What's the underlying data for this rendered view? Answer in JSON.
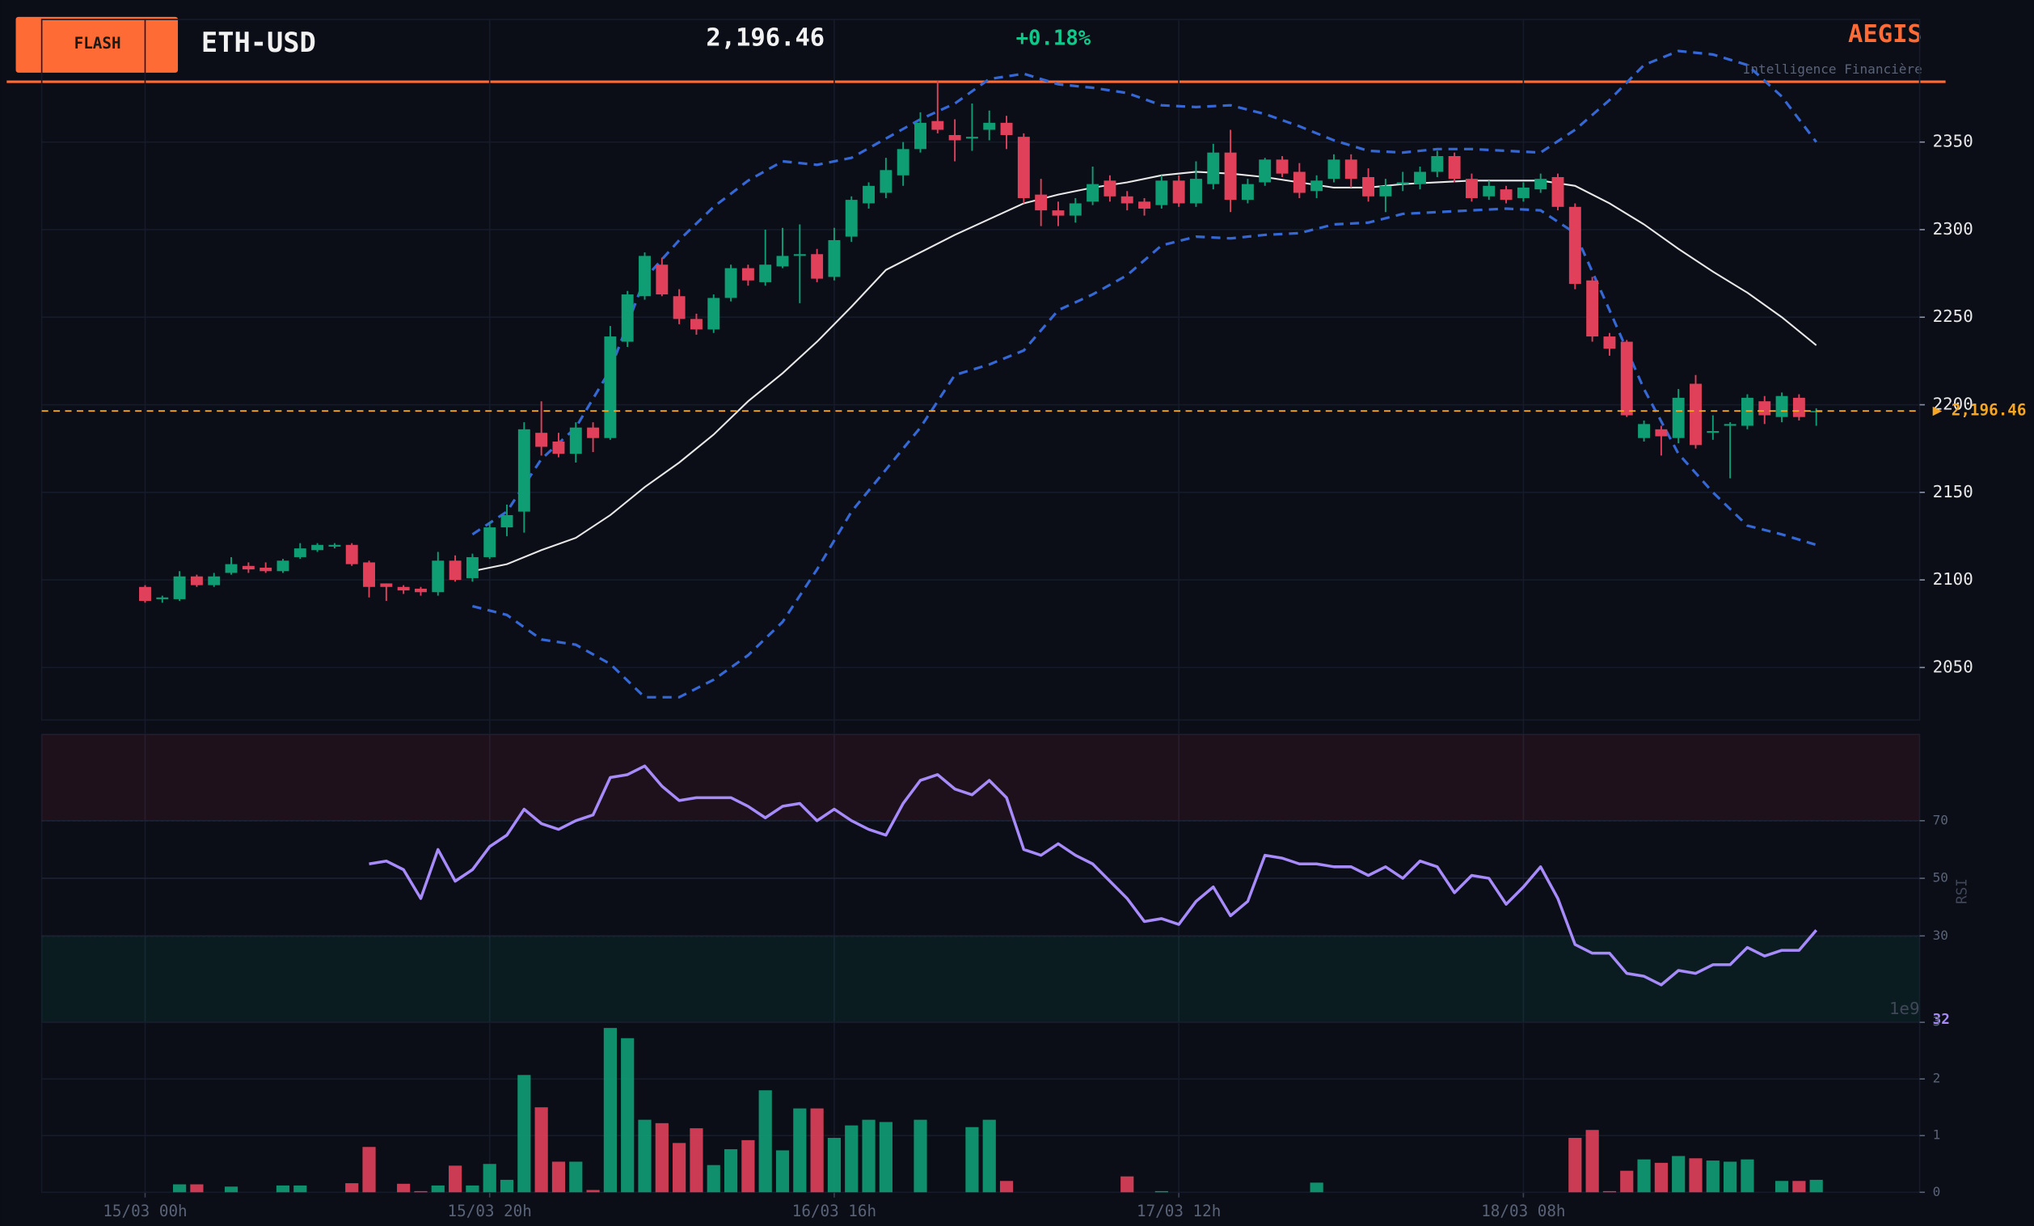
{
  "header": {
    "badge": "FLASH",
    "symbol": "ETH-USD",
    "price": "2,196.46",
    "change": "+0.18%",
    "brand": "AEGIS",
    "tagline": "Intelligence Financière"
  },
  "chart_data": [
    {
      "type": "candlestick",
      "x": [
        0,
        1,
        2,
        3,
        4,
        5,
        6,
        7,
        8,
        9,
        10,
        11,
        12,
        13,
        14,
        15,
        16,
        17,
        18,
        19,
        20,
        21,
        22,
        23,
        24,
        25,
        26,
        27,
        28,
        29,
        30,
        31,
        32,
        33,
        34,
        35,
        36,
        37,
        38,
        39,
        40,
        41,
        42,
        43,
        44,
        45,
        46,
        47,
        48,
        49,
        50,
        51,
        52,
        53,
        54,
        55,
        56,
        57,
        58,
        59,
        60,
        61,
        62,
        63,
        64,
        65,
        66,
        67,
        68,
        69,
        70,
        71,
        72,
        73,
        74,
        75,
        76,
        77,
        78,
        79,
        80,
        81,
        82,
        83,
        84,
        85,
        86,
        87,
        88,
        89,
        90,
        91,
        92,
        93,
        94,
        95,
        96,
        97
      ],
      "open": [
        2096,
        2089,
        2089,
        2102,
        2097,
        2104,
        2108,
        2107,
        2105,
        2113,
        2117,
        2119,
        2120,
        2110,
        2098,
        2096,
        2095,
        2093,
        2111,
        2101,
        2113,
        2130,
        2139,
        2184,
        2179,
        2172,
        2187,
        2181,
        2236,
        2262,
        2280,
        2262,
        2249,
        2243,
        2261,
        2278,
        2270,
        2279,
        2285,
        2286,
        2273,
        2296,
        2315,
        2321,
        2331,
        2346,
        2362,
        2354,
        2352,
        2357,
        2361,
        2353,
        2320,
        2311,
        2308,
        2316,
        2328,
        2319,
        2316,
        2314,
        2328,
        2315,
        2326,
        2344,
        2317,
        2327,
        2340,
        2333,
        2322,
        2329,
        2340,
        2330,
        2319,
        2326,
        2326,
        2333,
        2342,
        2329,
        2319,
        2323,
        2318,
        2323,
        2330,
        2313,
        2271,
        2239,
        2236,
        2181,
        2186,
        2181,
        2212,
        2184,
        2188,
        2188,
        2202,
        2193,
        2204,
        2196
      ],
      "high": [
        2097,
        2091,
        2105,
        2103,
        2104,
        2113,
        2110,
        2110,
        2112,
        2121,
        2121,
        2121,
        2121,
        2111,
        2098,
        2097,
        2096,
        2116,
        2114,
        2115,
        2133,
        2143,
        2190,
        2202,
        2184,
        2190,
        2190,
        2245,
        2265,
        2287,
        2284,
        2266,
        2252,
        2263,
        2280,
        2280,
        2300,
        2301,
        2303,
        2289,
        2301,
        2319,
        2327,
        2341,
        2350,
        2367,
        2385,
        2363,
        2372,
        2368,
        2365,
        2355,
        2329,
        2316,
        2318,
        2336,
        2331,
        2322,
        2318,
        2331,
        2331,
        2339,
        2349,
        2357,
        2329,
        2341,
        2342,
        2338,
        2331,
        2343,
        2343,
        2335,
        2329,
        2333,
        2336,
        2345,
        2344,
        2332,
        2328,
        2325,
        2327,
        2332,
        2332,
        2315,
        2273,
        2241,
        2237,
        2191,
        2188,
        2209,
        2217,
        2194,
        2190,
        2206,
        2205,
        2207,
        2206,
        2198
      ],
      "low": [
        2087,
        2087,
        2088,
        2096,
        2096,
        2103,
        2104,
        2104,
        2104,
        2112,
        2116,
        2118,
        2108,
        2090,
        2088,
        2092,
        2091,
        2091,
        2099,
        2099,
        2112,
        2125,
        2127,
        2171,
        2170,
        2167,
        2173,
        2180,
        2233,
        2260,
        2262,
        2246,
        2240,
        2241,
        2259,
        2268,
        2268,
        2278,
        2258,
        2270,
        2271,
        2293,
        2312,
        2318,
        2325,
        2344,
        2355,
        2339,
        2345,
        2351,
        2346,
        2315,
        2302,
        2302,
        2304,
        2314,
        2316,
        2311,
        2308,
        2312,
        2313,
        2313,
        2323,
        2310,
        2315,
        2325,
        2330,
        2318,
        2318,
        2327,
        2324,
        2316,
        2310,
        2322,
        2323,
        2330,
        2327,
        2316,
        2317,
        2315,
        2316,
        2321,
        2311,
        2266,
        2236,
        2228,
        2193,
        2179,
        2171,
        2178,
        2175,
        2180,
        2158,
        2186,
        2189,
        2190,
        2191,
        2188
      ],
      "close": [
        2088,
        2090,
        2102,
        2097,
        2102,
        2109,
        2106,
        2105,
        2111,
        2118,
        2120,
        2120,
        2109,
        2096,
        2096,
        2094,
        2093,
        2111,
        2100,
        2113,
        2130,
        2137,
        2186,
        2176,
        2172,
        2187,
        2181,
        2239,
        2263,
        2285,
        2263,
        2249,
        2243,
        2261,
        2278,
        2271,
        2280,
        2285,
        2286,
        2272,
        2294,
        2317,
        2325,
        2334,
        2346,
        2361,
        2357,
        2351,
        2353,
        2361,
        2354,
        2318,
        2311,
        2308,
        2315,
        2326,
        2319,
        2315,
        2312,
        2328,
        2315,
        2329,
        2344,
        2317,
        2326,
        2340,
        2332,
        2321,
        2328,
        2340,
        2329,
        2319,
        2325,
        2327,
        2333,
        2342,
        2329,
        2318,
        2325,
        2317,
        2324,
        2329,
        2313,
        2269,
        2239,
        2232,
        2194,
        2189,
        2182,
        2204,
        2177,
        2185,
        2189,
        2204,
        2194,
        2205,
        2193,
        2196.46
      ],
      "colors": {
        "up": "#0f9d74",
        "down": "#e0405a"
      },
      "overlays": [
        {
          "color": "#3568d4",
          "dashed": true,
          "x": [
            19,
            21,
            23,
            25,
            27,
            29,
            31,
            33,
            35,
            37,
            39,
            41,
            43,
            45,
            47,
            49,
            51,
            53,
            55,
            57,
            59,
            61,
            63,
            65,
            67,
            69,
            71,
            73,
            75,
            77,
            79,
            81,
            83,
            85,
            87,
            89,
            91,
            93,
            95,
            97
          ],
          "values": [
            2126,
            2139,
            2169,
            2187,
            2220,
            2272,
            2294,
            2313,
            2328,
            2339,
            2337,
            2341,
            2352,
            2363,
            2372,
            2386,
            2389,
            2383,
            2381,
            2378,
            2371,
            2370,
            2371,
            2366,
            2359,
            2351,
            2345,
            2344,
            2346,
            2346,
            2345,
            2344,
            2357,
            2374,
            2394,
            2402,
            2400,
            2394,
            2376,
            2350
          ]
        },
        {
          "color": "#e8e8e8",
          "dashed": false,
          "x": [
            19,
            21,
            23,
            25,
            27,
            29,
            31,
            33,
            35,
            37,
            39,
            41,
            43,
            45,
            47,
            49,
            51,
            53,
            55,
            57,
            59,
            61,
            63,
            65,
            67,
            69,
            71,
            73,
            75,
            77,
            79,
            81,
            83,
            85,
            87,
            89,
            91,
            93,
            95,
            97
          ],
          "values": [
            2105,
            2109,
            2117,
            2124,
            2137,
            2153,
            2167,
            2183,
            2202,
            2218,
            2236,
            2256,
            2277,
            2287,
            2297,
            2306,
            2315,
            2320,
            2324,
            2327,
            2331,
            2333,
            2332,
            2330,
            2327,
            2324,
            2324,
            2326,
            2327,
            2328,
            2328,
            2328,
            2325,
            2315,
            2303,
            2289,
            2276,
            2264,
            2250,
            2234
          ]
        },
        {
          "color": "#3568d4",
          "dashed": true,
          "x": [
            19,
            21,
            23,
            25,
            27,
            29,
            31,
            33,
            35,
            37,
            39,
            41,
            43,
            45,
            47,
            49,
            51,
            53,
            55,
            57,
            59,
            61,
            63,
            65,
            67,
            69,
            71,
            73,
            75,
            77,
            79,
            81,
            83,
            85,
            87,
            89,
            91,
            93,
            95,
            97
          ],
          "values": [
            2085,
            2080,
            2066,
            2063,
            2052,
            2033,
            2033,
            2043,
            2057,
            2076,
            2106,
            2139,
            2163,
            2187,
            2217,
            2223,
            2231,
            2254,
            2263,
            2274,
            2291,
            2296,
            2295,
            2297,
            2298,
            2303,
            2304,
            2309,
            2310,
            2311,
            2312,
            2311,
            2298,
            2254,
            2209,
            2172,
            2150,
            2131,
            2126,
            2120
          ]
        }
      ],
      "price_line": {
        "value": 2196.46,
        "label": "▶ 2,196.46",
        "color": "#f5a623"
      },
      "xlim": [
        -6,
        103
      ],
      "xticks": [
        {
          "value": 0,
          "label": "15/03 00h"
        },
        {
          "value": 20,
          "label": "15/03 20h"
        },
        {
          "value": 40,
          "label": "16/03 16h"
        },
        {
          "value": 60,
          "label": "17/03 12h"
        },
        {
          "value": 80,
          "label": "18/03 08h"
        }
      ],
      "ylim": [
        2020,
        2420
      ],
      "yticks": [
        2050,
        2100,
        2150,
        2200,
        2250,
        2300,
        2350
      ],
      "grid": true
    },
    {
      "type": "line",
      "ylabel": "RSI",
      "color": "#a78bfa",
      "x": [
        13,
        14,
        15,
        16,
        17,
        18,
        19,
        20,
        21,
        22,
        23,
        24,
        25,
        26,
        27,
        28,
        29,
        30,
        31,
        32,
        33,
        34,
        35,
        36,
        37,
        38,
        39,
        40,
        41,
        42,
        43,
        44,
        45,
        46,
        47,
        48,
        49,
        50,
        51,
        52,
        53,
        54,
        55,
        56,
        57,
        58,
        59,
        60,
        61,
        62,
        63,
        64,
        65,
        66,
        67,
        68,
        69,
        70,
        71,
        72,
        73,
        74,
        75,
        76,
        77,
        78,
        79,
        80,
        81,
        82,
        83,
        84,
        85,
        86,
        87,
        88,
        89,
        90,
        91,
        92,
        93,
        94,
        95,
        96,
        97
      ],
      "values": [
        55,
        56,
        53,
        43,
        60,
        49,
        53,
        61,
        65,
        74,
        69,
        67,
        70,
        72,
        85,
        86,
        89,
        82,
        77,
        78,
        78,
        78,
        75,
        71,
        75,
        76,
        70,
        74,
        70,
        67,
        65,
        76,
        84,
        86,
        81,
        79,
        84,
        78,
        60,
        58,
        62,
        58,
        55,
        49,
        43,
        35,
        36,
        34,
        42,
        47,
        37,
        42,
        58,
        57,
        55,
        55,
        54,
        54,
        51,
        54,
        50,
        56,
        54,
        45,
        51,
        50,
        41,
        47,
        54,
        43,
        27,
        24,
        24,
        17,
        16,
        13,
        18,
        17,
        20,
        20,
        26,
        23,
        25,
        25,
        32
      ],
      "zones": [
        {
          "range": [
            70,
            100
          ],
          "color": "#e0405a"
        },
        {
          "range": [
            0,
            30
          ],
          "color": "#10b981"
        }
      ],
      "xlim": [
        -6,
        103
      ],
      "ylim": [
        0,
        100
      ],
      "yticks": [
        30,
        50,
        70
      ]
    },
    {
      "type": "bar",
      "offset_label": "1e9",
      "x": [
        0,
        1,
        2,
        3,
        4,
        5,
        6,
        7,
        8,
        9,
        10,
        11,
        12,
        13,
        14,
        15,
        16,
        17,
        18,
        19,
        20,
        21,
        22,
        23,
        24,
        25,
        26,
        27,
        28,
        29,
        30,
        31,
        32,
        33,
        34,
        35,
        36,
        37,
        38,
        39,
        40,
        41,
        42,
        43,
        44,
        45,
        46,
        47,
        48,
        49,
        50,
        51,
        52,
        53,
        54,
        55,
        56,
        57,
        58,
        59,
        60,
        61,
        62,
        63,
        64,
        65,
        66,
        67,
        68,
        69,
        70,
        71,
        72,
        73,
        74,
        75,
        76,
        77,
        78,
        79,
        80,
        81,
        82,
        83,
        84,
        85,
        86,
        87,
        88,
        89,
        90,
        91,
        92,
        93,
        94,
        95,
        96,
        97
      ],
      "values": [
        0,
        0,
        0.14,
        0.14,
        0,
        0.1,
        0,
        0,
        0.12,
        0.12,
        0,
        0,
        0.16,
        0.8,
        0,
        0.15,
        0.02,
        0.12,
        0.47,
        0.12,
        0.5,
        0.22,
        2.07,
        1.5,
        0.54,
        0.54,
        0.04,
        2.9,
        2.72,
        1.28,
        1.22,
        0.87,
        1.13,
        0.48,
        0.76,
        0.92,
        1.8,
        0.74,
        1.48,
        1.48,
        0.96,
        1.18,
        1.28,
        1.24,
        0,
        1.28,
        0,
        0,
        1.15,
        1.28,
        0.2,
        0,
        0,
        0,
        0,
        0,
        0,
        0.28,
        0,
        0.02,
        0,
        0,
        0,
        0,
        0,
        0,
        0,
        0,
        0.17,
        0,
        0,
        0,
        0,
        0,
        0,
        0,
        0,
        0,
        0,
        0,
        0,
        0,
        0,
        0.96,
        1.1,
        0.02,
        0.38,
        0.58,
        0.52,
        0.64,
        0.6,
        0.56,
        0.54,
        0.58,
        0,
        0.2,
        0.2,
        0.22
      ],
      "xlim": [
        -6,
        103
      ],
      "ylim": [
        0,
        3
      ],
      "yticks": [
        0,
        1,
        2,
        3
      ]
    }
  ]
}
